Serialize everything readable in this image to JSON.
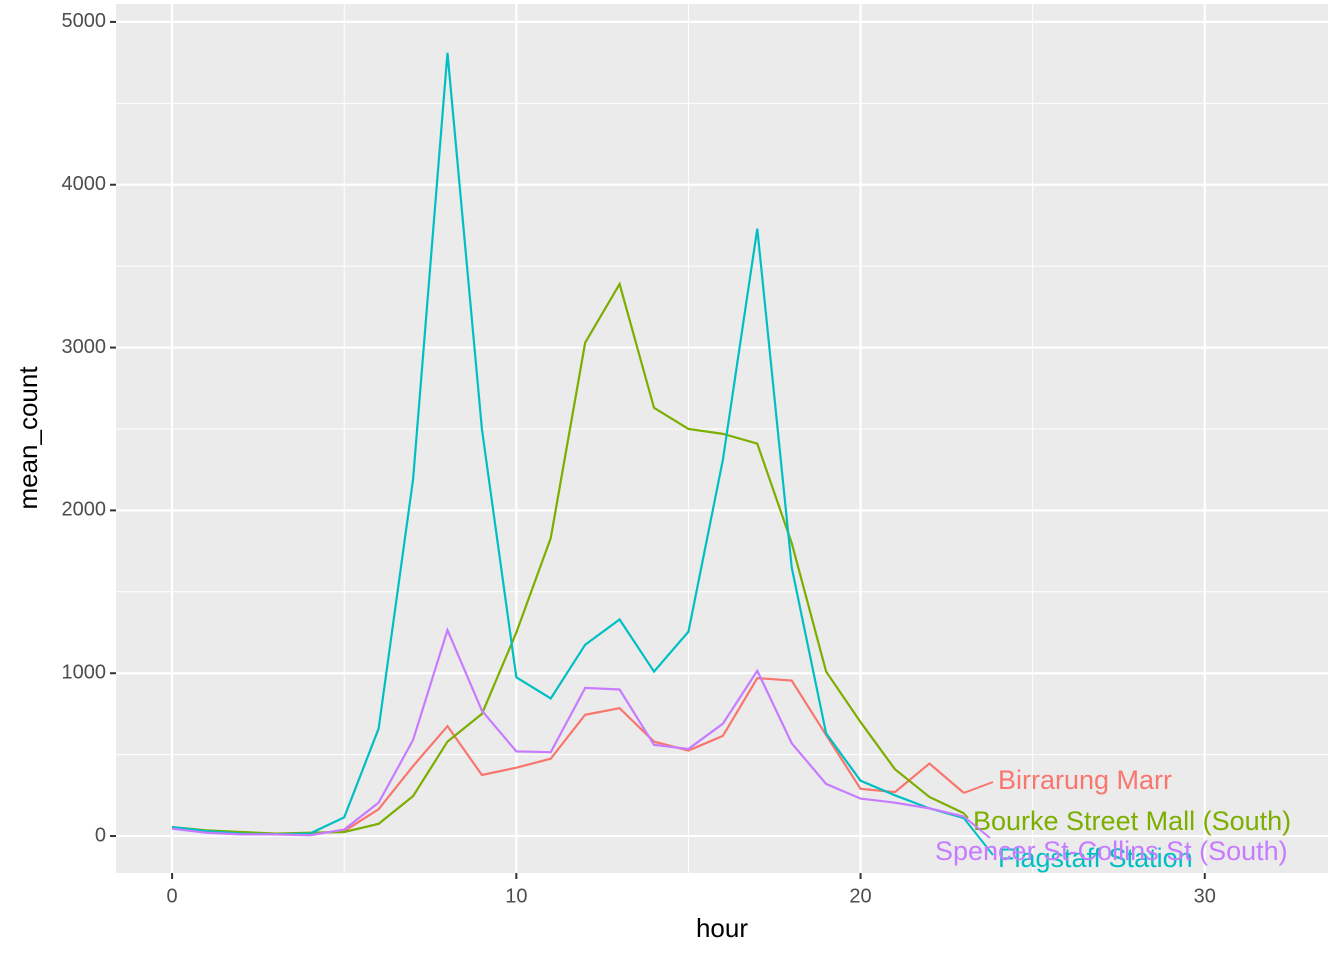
{
  "chart_data": {
    "type": "line",
    "x_label": "hour",
    "y_label": "mean_count",
    "x": [
      0,
      1,
      2,
      3,
      4,
      5,
      6,
      7,
      8,
      9,
      10,
      11,
      12,
      13,
      14,
      15,
      16,
      17,
      18,
      19,
      20,
      21,
      22,
      23
    ],
    "series": [
      {
        "name": "Birrarung Marr",
        "color": "#F8766D",
        "values": [
          50,
          30,
          20,
          15,
          15,
          30,
          165,
          430,
          675,
          375,
          420,
          475,
          745,
          785,
          580,
          525,
          615,
          970,
          955,
          620,
          290,
          270,
          445,
          265
        ]
      },
      {
        "name": "Bourke Street Mall (South)",
        "color": "#7CAE00",
        "values": [
          55,
          35,
          25,
          15,
          20,
          25,
          75,
          245,
          580,
          750,
          1250,
          1830,
          3030,
          3390,
          2630,
          2500,
          2470,
          2410,
          1800,
          1010,
          700,
          410,
          240,
          140
        ]
      },
      {
        "name": "Flagstaff Station",
        "color": "#00BFC4",
        "values": [
          55,
          30,
          15,
          10,
          15,
          115,
          660,
          2190,
          4810,
          2500,
          975,
          845,
          1175,
          1330,
          1010,
          1255,
          2310,
          3730,
          1650,
          630,
          340,
          250,
          170,
          110
        ]
      },
      {
        "name": "Spencer St-Collins St (South)",
        "color": "#C77CFF",
        "values": [
          45,
          20,
          10,
          10,
          5,
          40,
          205,
          590,
          1265,
          770,
          520,
          515,
          910,
          900,
          560,
          535,
          690,
          1015,
          570,
          320,
          230,
          205,
          170,
          120
        ]
      }
    ],
    "xlim": [
      -1.63,
      33.58
    ],
    "xticks": [
      0,
      10,
      20,
      30
    ],
    "ylim": [
      -227,
      5110
    ],
    "yticks": [
      0,
      1000,
      2000,
      3000,
      4000,
      5000
    ],
    "grid": true
  }
}
